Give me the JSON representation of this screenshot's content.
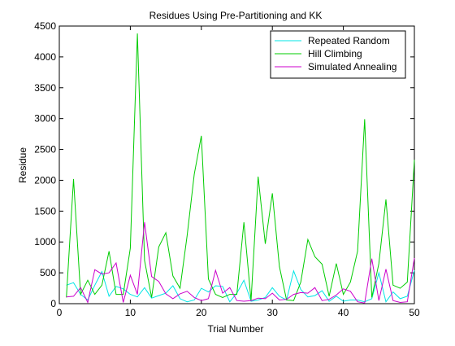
{
  "chart_data": {
    "type": "line",
    "title": "Residues Using Pre-Partitioning and KK",
    "xlabel": "Trial Number",
    "ylabel": "Residue",
    "xlim": [
      0,
      50
    ],
    "ylim": [
      0,
      4500
    ],
    "xticks": [
      0,
      10,
      20,
      30,
      40,
      50
    ],
    "yticks": [
      0,
      500,
      1000,
      1500,
      2000,
      2500,
      3000,
      3500,
      4000,
      4500
    ],
    "grid": false,
    "legend_position": "top-right",
    "x": [
      1,
      2,
      3,
      4,
      5,
      6,
      7,
      8,
      9,
      10,
      11,
      12,
      13,
      14,
      15,
      16,
      17,
      18,
      19,
      20,
      21,
      22,
      23,
      24,
      25,
      26,
      27,
      28,
      29,
      30,
      31,
      32,
      33,
      34,
      35,
      36,
      37,
      38,
      39,
      40,
      41,
      42,
      43,
      44,
      45,
      46,
      47,
      48,
      49,
      50
    ],
    "series": [
      {
        "name": "Repeated Random",
        "color": "#00e5e5",
        "values": [
          300,
          340,
          150,
          60,
          300,
          520,
          120,
          280,
          240,
          150,
          110,
          260,
          90,
          130,
          170,
          290,
          80,
          30,
          60,
          250,
          190,
          290,
          280,
          30,
          170,
          380,
          40,
          60,
          100,
          260,
          120,
          60,
          530,
          230,
          110,
          130,
          210,
          40,
          120,
          40,
          60,
          60,
          30,
          80,
          500,
          30,
          190,
          80,
          120,
          540
        ]
      },
      {
        "name": "Hill Climbing",
        "color": "#00cc00",
        "values": [
          100,
          2020,
          150,
          380,
          150,
          300,
          850,
          150,
          150,
          900,
          4380,
          700,
          100,
          920,
          1150,
          450,
          250,
          1100,
          2100,
          2720,
          400,
          150,
          100,
          150,
          150,
          1320,
          50,
          2060,
          970,
          1790,
          600,
          60,
          50,
          350,
          1040,
          760,
          640,
          120,
          650,
          150,
          350,
          850,
          2990,
          100,
          650,
          1690,
          300,
          250,
          350,
          2330
        ]
      },
      {
        "name": "Simulated Annealing",
        "color": "#cc00cc",
        "values": [
          110,
          120,
          260,
          20,
          550,
          480,
          500,
          660,
          20,
          460,
          150,
          1320,
          440,
          360,
          160,
          80,
          160,
          200,
          100,
          50,
          80,
          540,
          170,
          260,
          50,
          40,
          50,
          90,
          80,
          170,
          60,
          70,
          150,
          180,
          170,
          260,
          50,
          70,
          140,
          240,
          200,
          30,
          10,
          730,
          50,
          560,
          50,
          20,
          30,
          740
        ]
      }
    ]
  }
}
